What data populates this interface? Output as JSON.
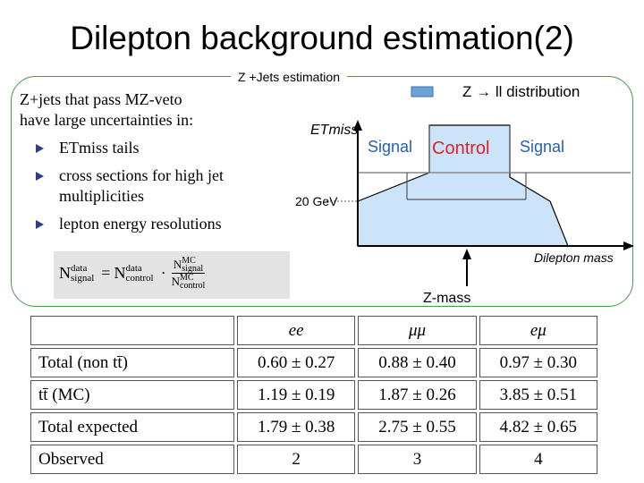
{
  "slide": {
    "title": "Dilepton background estimation(2)"
  },
  "estimation": {
    "label": "Z +Jets estimation",
    "intro_line1": "Z+jets that pass MZ-veto",
    "intro_line2": "have large uncertainties in:",
    "bullets": [
      "ETmiss tails",
      "cross sections for high jet multiplicities",
      "lepton energy resolutions"
    ],
    "formula": {
      "lhs": "N",
      "lhs_sup": "data",
      "lhs_sub": "signal",
      "rhs": "N",
      "rhs_sup": "data",
      "rhs_sub": "control",
      "frac_num": "N",
      "frac_num_sup": "MC",
      "frac_num_sub": "signal",
      "frac_den": "N",
      "frac_den_sup": "MC",
      "frac_den_sub": "control"
    }
  },
  "diagram": {
    "legend": "Z → ll distribution",
    "y_axis": "ETmiss",
    "x_axis": "Dilepton mass",
    "threshold": "20 GeV",
    "signal_left": "Signal",
    "control": "Control",
    "signal_right": "Signal",
    "z_mass": "Z-mass",
    "colors": {
      "fill": "#cce4fa",
      "control": "#e0202a",
      "legend_box": "#6fa3d8"
    }
  },
  "table": {
    "columns": [
      "ee",
      "μμ",
      "eμ"
    ],
    "rows": [
      {
        "label": "Total (non tt̄)",
        "values": [
          "0.60 ± 0.27",
          "0.88 ± 0.40",
          "0.97 ± 0.30"
        ]
      },
      {
        "label": "tt̄ (MC)",
        "values": [
          "1.19 ± 0.19",
          "1.87 ± 0.26",
          "3.85 ± 0.51"
        ]
      },
      {
        "label": "Total expected",
        "values": [
          "1.79 ± 0.38",
          "2.75 ± 0.55",
          "4.82 ± 0.65"
        ]
      }
    ],
    "observed": {
      "label": "Observed",
      "values": [
        "2",
        "3",
        "4"
      ]
    }
  }
}
